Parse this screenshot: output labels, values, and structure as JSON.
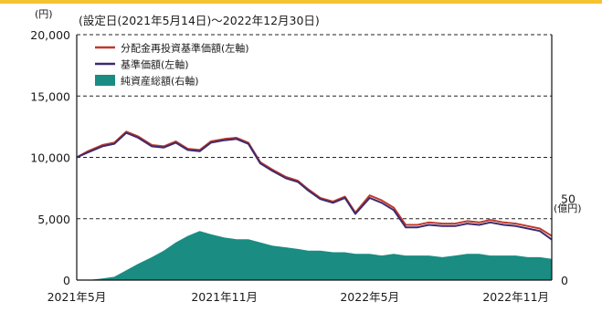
{
  "colors": {
    "top_band": "#f5c330",
    "total_return_line": "#c0392b",
    "nav_line": "#3d2a6e",
    "assets_fill": "#1a8c82",
    "grid": "#222222",
    "text": "#1a1a1a"
  },
  "chart_data": {
    "type": "line",
    "title": "(設定日(2021年5月14日)～2022年12月30日)",
    "y_left_unit": "(円)",
    "y_right_unit": "(億円)",
    "y_left_range": [
      0,
      20000
    ],
    "y_left_ticks": [
      "20,000",
      "15,000",
      "10,000",
      "5,000",
      "0"
    ],
    "y_right_ticks": [
      "50",
      "0"
    ],
    "y_right_scale_max": 150,
    "x_ticks": [
      "2021年5月",
      "2021年11月",
      "2022年5月",
      "2022年11月"
    ],
    "grid": "dashed horizontal",
    "legend_position": "top-left",
    "legend": [
      {
        "label": "分配金再投資基準価額(左軸)",
        "kind": "line",
        "color": "#c0392b"
      },
      {
        "label": "基準価額(左軸)",
        "kind": "line",
        "color": "#3d2a6e"
      },
      {
        "label": "純資産総額(右軸)",
        "kind": "area",
        "color": "#1a8c82"
      }
    ],
    "x": [
      "2021-05-14",
      "2021-05-28",
      "2021-06-15",
      "2021-06-30",
      "2021-07-15",
      "2021-07-30",
      "2021-08-16",
      "2021-08-31",
      "2021-09-15",
      "2021-09-30",
      "2021-10-15",
      "2021-10-29",
      "2021-11-15",
      "2021-11-30",
      "2021-12-15",
      "2021-12-30",
      "2022-01-14",
      "2022-01-31",
      "2022-02-15",
      "2022-02-28",
      "2022-03-15",
      "2022-03-31",
      "2022-04-15",
      "2022-04-28",
      "2022-05-16",
      "2022-05-31",
      "2022-06-15",
      "2022-06-30",
      "2022-07-15",
      "2022-07-29",
      "2022-08-15",
      "2022-08-31",
      "2022-09-15",
      "2022-09-30",
      "2022-10-14",
      "2022-10-31",
      "2022-11-15",
      "2022-11-30",
      "2022-12-15",
      "2022-12-30"
    ],
    "series": [
      {
        "name": "分配金再投資基準価額(左軸)",
        "values": [
          10000,
          10500,
          11000,
          11200,
          12100,
          11700,
          11000,
          10900,
          11300,
          10700,
          10600,
          11300,
          11500,
          11600,
          11200,
          9600,
          9000,
          8400,
          8100,
          7400,
          6700,
          6400,
          6800,
          5500,
          6900,
          6500,
          5900,
          4500,
          4500,
          4700,
          4600,
          4600,
          4800,
          4700,
          4900,
          4700,
          4600,
          4400,
          4200,
          3600
        ]
      },
      {
        "name": "基準価額(左軸)",
        "values": [
          10000,
          10400,
          10900,
          11100,
          12000,
          11600,
          10900,
          10800,
          11200,
          10600,
          10500,
          11200,
          11400,
          11500,
          11100,
          9500,
          8900,
          8300,
          8000,
          7300,
          6600,
          6300,
          6700,
          5400,
          6700,
          6300,
          5700,
          4300,
          4300,
          4500,
          4400,
          4400,
          4600,
          4500,
          4700,
          4500,
          4400,
          4200,
          4000,
          3300
        ]
      },
      {
        "name": "純資産総額(右軸)",
        "values": [
          0,
          0,
          1,
          2,
          6,
          10,
          14,
          18,
          23,
          27,
          30,
          28,
          26,
          25,
          25,
          23,
          21,
          20,
          19,
          18,
          18,
          17,
          17,
          16,
          16,
          15,
          16,
          15,
          15,
          15,
          14,
          15,
          16,
          16,
          15,
          15,
          15,
          14,
          14,
          13
        ]
      }
    ]
  }
}
